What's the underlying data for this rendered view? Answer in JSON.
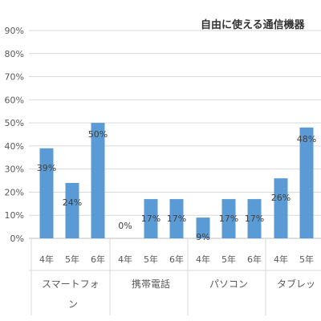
{
  "chart_data": {
    "type": "bar",
    "title": "自由に使える通信機器",
    "ylim": [
      0,
      90
    ],
    "yticks": [
      "0%",
      "10%",
      "20%",
      "30%",
      "40%",
      "50%",
      "60%",
      "70%",
      "80%",
      "90%"
    ],
    "grid": true,
    "bar_color": "#5b9bd5",
    "groups": [
      {
        "name": "スマートフォン",
        "categories": [
          "4年",
          "5年",
          "6年"
        ],
        "values": [
          39,
          24,
          50
        ],
        "labels": [
          "39%",
          "24%",
          "50%"
        ]
      },
      {
        "name": "携帯電話",
        "categories": [
          "4年",
          "5年",
          "6年"
        ],
        "values": [
          0,
          17,
          17
        ],
        "labels": [
          "0%",
          "17%",
          "17%"
        ]
      },
      {
        "name": "パソコン",
        "categories": [
          "4年",
          "5年",
          "6年"
        ],
        "values": [
          9,
          17,
          17
        ],
        "labels": [
          "9%",
          "17%",
          "17%"
        ]
      },
      {
        "name": "タブレッ",
        "categories": [
          "4年",
          "5年"
        ],
        "values": [
          26,
          48
        ],
        "labels": [
          "26%",
          "48%"
        ]
      }
    ]
  }
}
